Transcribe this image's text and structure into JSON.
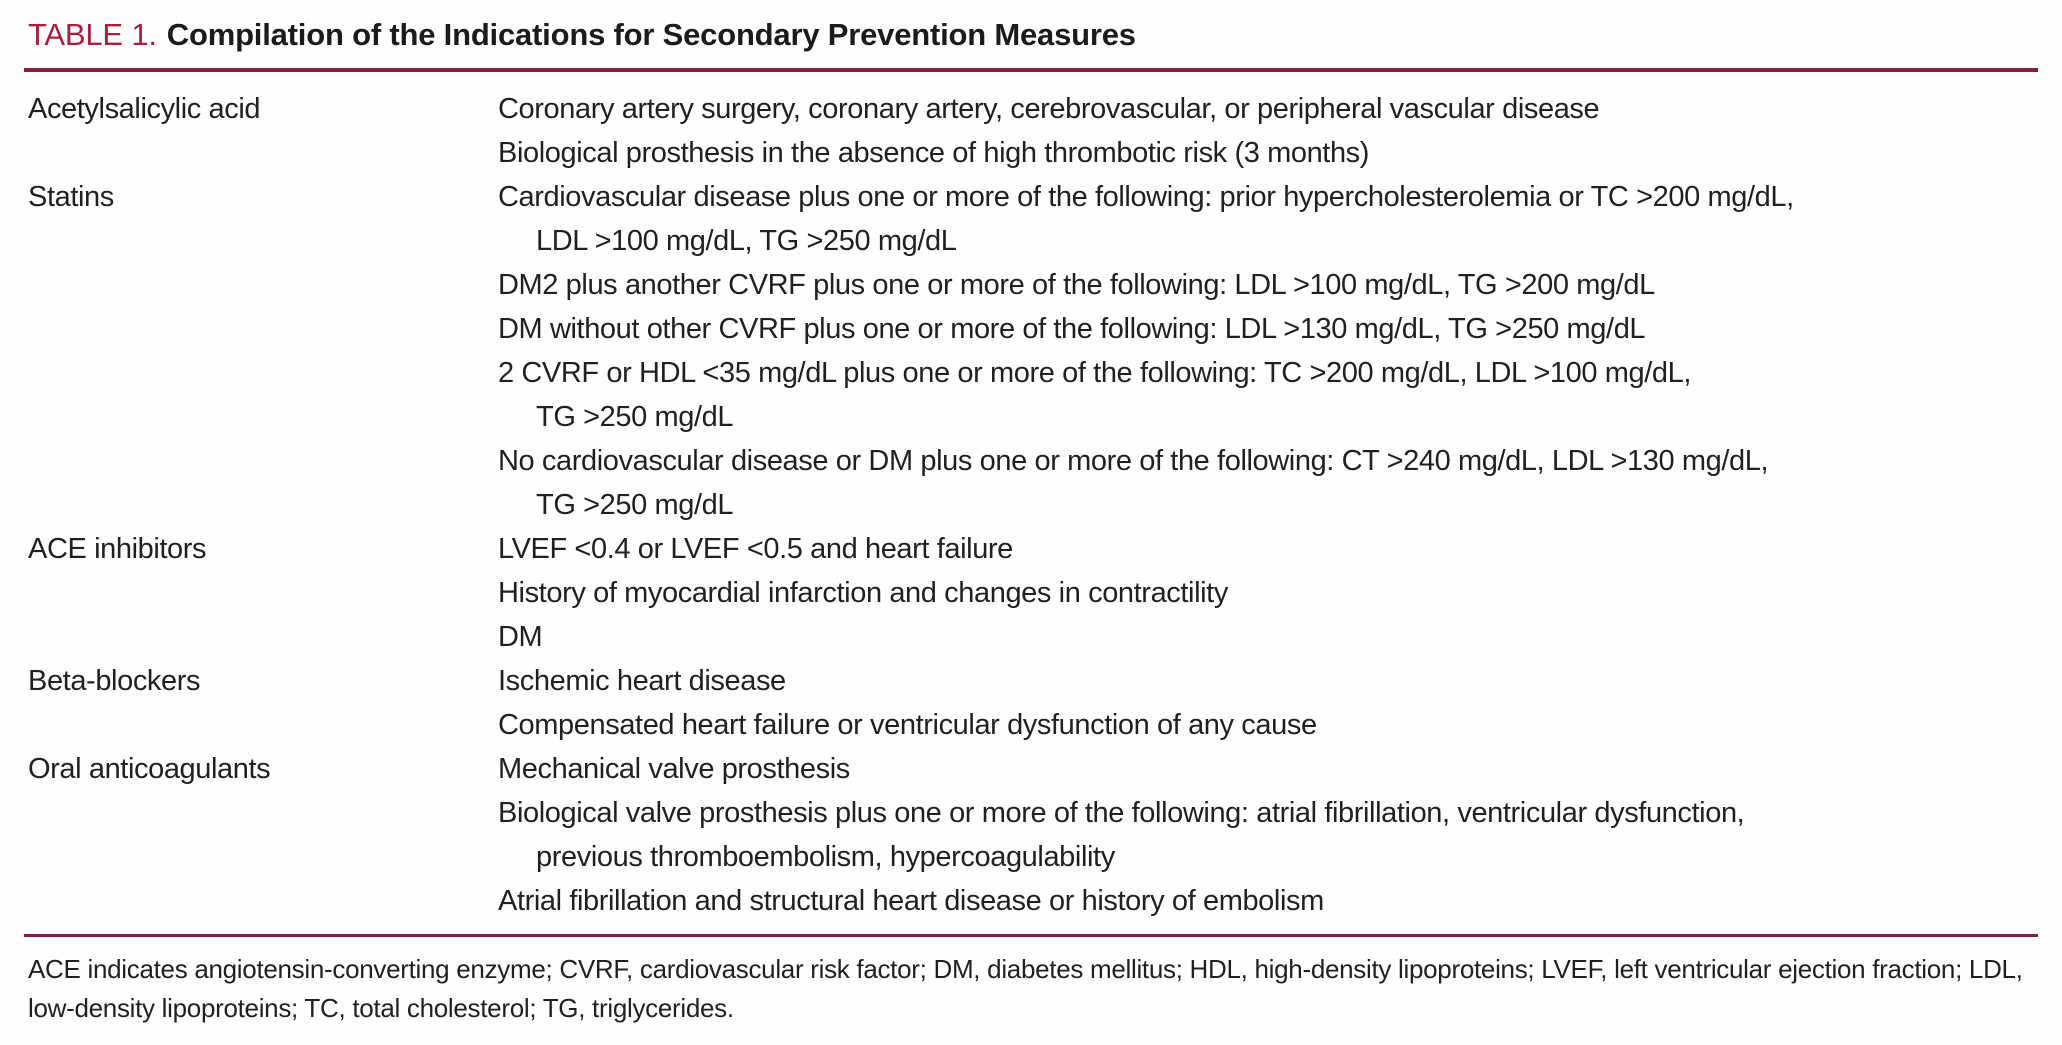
{
  "colors": {
    "accent": "#a91e3c",
    "rule": "#871c40",
    "text": "#231f20"
  },
  "table": {
    "label": "TABLE 1.",
    "title": "Compilation of the Indications for Secondary Prevention Measures",
    "rows": [
      {
        "drug": "Acetylsalicylic acid",
        "indications": [
          {
            "text": "Coronary artery surgery, coronary artery, cerebrovascular, or peripheral vascular disease",
            "indent": false
          },
          {
            "text": "Biological prosthesis in the absence of high thrombotic risk (3 months)",
            "indent": false
          }
        ]
      },
      {
        "drug": "Statins",
        "indications": [
          {
            "text": "Cardiovascular disease plus one or more of the following: prior hypercholesterolemia or TC >200 mg/dL,",
            "indent": false
          },
          {
            "text": "LDL >100 mg/dL, TG >250 mg/dL",
            "indent": true
          },
          {
            "text": "DM2 plus another CVRF plus one or more of the following: LDL >100 mg/dL, TG >200 mg/dL",
            "indent": false
          },
          {
            "text": "DM without other CVRF plus one or more of the following: LDL >130 mg/dL, TG >250 mg/dL",
            "indent": false
          },
          {
            "text": "2 CVRF or HDL <35 mg/dL plus one or more of the following: TC >200 mg/dL, LDL >100 mg/dL,",
            "indent": false
          },
          {
            "text": "TG >250 mg/dL",
            "indent": true
          },
          {
            "text": "No cardiovascular disease or DM plus one or more of the following: CT >240 mg/dL, LDL >130 mg/dL,",
            "indent": false
          },
          {
            "text": "TG >250 mg/dL",
            "indent": true
          }
        ]
      },
      {
        "drug": "ACE inhibitors",
        "indications": [
          {
            "text": "LVEF <0.4 or LVEF <0.5 and heart failure",
            "indent": false
          },
          {
            "text": "History of myocardial infarction and changes in contractility",
            "indent": false
          },
          {
            "text": "DM",
            "indent": false
          }
        ]
      },
      {
        "drug": "Beta-blockers",
        "indications": [
          {
            "text": "Ischemic heart disease",
            "indent": false
          },
          {
            "text": "Compensated heart failure or ventricular dysfunction of any cause",
            "indent": false
          }
        ]
      },
      {
        "drug": "Oral anticoagulants",
        "indications": [
          {
            "text": "Mechanical valve prosthesis",
            "indent": false
          },
          {
            "text": "Biological valve prosthesis plus one or more of the following: atrial fibrillation, ventricular dysfunction,",
            "indent": false
          },
          {
            "text": "previous thromboembolism, hypercoagulability",
            "indent": true
          },
          {
            "text": "Atrial fibrillation and structural heart disease or history of embolism",
            "indent": false
          }
        ]
      }
    ],
    "footnote": "ACE indicates angiotensin-converting enzyme; CVRF, cardiovascular risk factor; DM, diabetes mellitus; HDL, high-density lipoproteins; LVEF, left ventricular ejection fraction; LDL, low-density lipoproteins; TC, total cholesterol; TG, triglycerides."
  }
}
